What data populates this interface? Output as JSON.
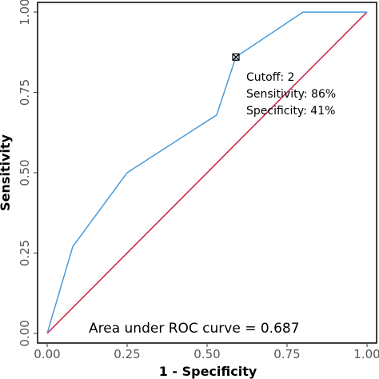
{
  "chart_data": {
    "type": "line",
    "xlabel": "1 - Specificity",
    "ylabel": "Sensitivity",
    "xlim": [
      -0.03,
      1.03
    ],
    "ylim": [
      -0.03,
      1.03
    ],
    "xticks": [
      "0.00",
      "0.25",
      "0.50",
      "0.75",
      "1.00"
    ],
    "yticks": [
      "0.00",
      "0.25",
      "0.50",
      "0.75",
      "1.00"
    ],
    "grid": false,
    "series": [
      {
        "role": "roc-curve",
        "color": "#4a9ad8",
        "x": [
          0.0,
          0.08,
          0.25,
          0.53,
          0.59,
          0.8,
          1.0
        ],
        "y": [
          0.0,
          0.27,
          0.5,
          0.68,
          0.86,
          1.0,
          1.0
        ]
      },
      {
        "role": "reference-diagonal",
        "color": "#cc1f3c",
        "x": [
          0.0,
          1.0
        ],
        "y": [
          0.0,
          1.0
        ]
      }
    ],
    "cutoff_point": {
      "x": 0.59,
      "y": 0.86
    },
    "annotations": {
      "cutoff": "Cutoff: 2",
      "sensitivity": "Sensitivity: 86%",
      "specificity": "Specificity: 41%",
      "auc": "Area under ROC curve =  0.687"
    }
  }
}
